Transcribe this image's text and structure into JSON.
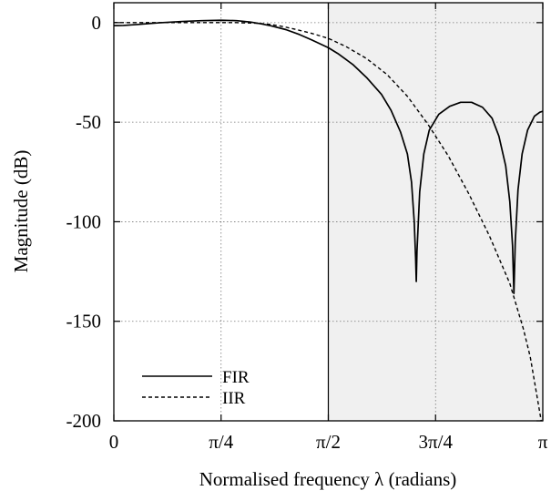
{
  "chart_data": {
    "type": "line",
    "title": "",
    "xlabel": "Normalised frequency λ (radians)",
    "ylabel": "Magnitude (dB)",
    "xlim": [
      0,
      3.14159265
    ],
    "ylim": [
      -200,
      10
    ],
    "grid": true,
    "legend_position": "bottom-left",
    "x_ticks": [
      {
        "value": 0,
        "label": "0"
      },
      {
        "value": 0.78539816,
        "label": "π/4"
      },
      {
        "value": 1.57079633,
        "label": "π/2"
      },
      {
        "value": 2.35619449,
        "label": "3π/4"
      },
      {
        "value": 3.14159265,
        "label": "π"
      }
    ],
    "y_ticks": [
      {
        "value": 0,
        "label": "0"
      },
      {
        "value": -50,
        "label": "-50"
      },
      {
        "value": -100,
        "label": "-100"
      },
      {
        "value": -150,
        "label": "-150"
      },
      {
        "value": -200,
        "label": "-200"
      }
    ],
    "stopband_shading": {
      "from": 1.57079633,
      "to": 3.14159265,
      "color": "#f0f0f0"
    },
    "divider_x": 1.57079633,
    "series": [
      {
        "name": "FIR",
        "style": "solid",
        "color": "#000000",
        "points": [
          [
            0.0,
            -1.5
          ],
          [
            0.07,
            -1.4
          ],
          [
            0.18,
            -0.9
          ],
          [
            0.33,
            -0.1
          ],
          [
            0.5,
            0.6
          ],
          [
            0.64,
            1.0
          ],
          [
            0.785,
            1.2
          ],
          [
            0.9,
            1.0
          ],
          [
            1.0,
            0.3
          ],
          [
            1.08,
            -0.6
          ],
          [
            1.15,
            -1.6
          ],
          [
            1.26,
            -3.5
          ],
          [
            1.36,
            -6.0
          ],
          [
            1.45,
            -8.7
          ],
          [
            1.571,
            -12.6
          ],
          [
            1.64,
            -15.5
          ],
          [
            1.75,
            -21.0
          ],
          [
            1.85,
            -27.5
          ],
          [
            1.96,
            -36.0
          ],
          [
            2.03,
            -44.0
          ],
          [
            2.1,
            -55.0
          ],
          [
            2.15,
            -66.0
          ],
          [
            2.18,
            -80.0
          ],
          [
            2.2,
            -100.0
          ],
          [
            2.21,
            -118.0
          ],
          [
            2.215,
            -130.0
          ],
          [
            2.22,
            -115.0
          ],
          [
            2.24,
            -85.0
          ],
          [
            2.27,
            -66.0
          ],
          [
            2.31,
            -54.0
          ],
          [
            2.38,
            -46.0
          ],
          [
            2.46,
            -42.0
          ],
          [
            2.54,
            -40.0
          ],
          [
            2.62,
            -40.0
          ],
          [
            2.7,
            -42.5
          ],
          [
            2.77,
            -48.0
          ],
          [
            2.82,
            -57.0
          ],
          [
            2.87,
            -72.0
          ],
          [
            2.9,
            -90.0
          ],
          [
            2.92,
            -112.0
          ],
          [
            2.93,
            -136.0
          ],
          [
            2.94,
            -110.0
          ],
          [
            2.96,
            -84.0
          ],
          [
            2.99,
            -66.0
          ],
          [
            3.03,
            -54.0
          ],
          [
            3.08,
            -47.0
          ],
          [
            3.12,
            -45.0
          ],
          [
            3.1416,
            -44.5
          ]
        ]
      },
      {
        "name": "IIR",
        "style": "dashed",
        "color": "#000000",
        "points": [
          [
            0.0,
            0.0
          ],
          [
            0.3,
            0.0
          ],
          [
            0.6,
            0.0
          ],
          [
            0.9,
            0.0
          ],
          [
            1.05,
            -0.3
          ],
          [
            1.15,
            -0.9
          ],
          [
            1.25,
            -2.1
          ],
          [
            1.35,
            -3.7
          ],
          [
            1.45,
            -5.4
          ],
          [
            1.571,
            -7.9
          ],
          [
            1.7,
            -12.0
          ],
          [
            1.85,
            -18.0
          ],
          [
            2.0,
            -26.0
          ],
          [
            2.15,
            -37.0
          ],
          [
            2.3,
            -51.0
          ],
          [
            2.45,
            -67.0
          ],
          [
            2.6,
            -86.0
          ],
          [
            2.75,
            -107.0
          ],
          [
            2.9,
            -131.0
          ],
          [
            3.0,
            -154.0
          ],
          [
            3.05,
            -168.0
          ],
          [
            3.1,
            -188.0
          ],
          [
            3.13,
            -200.0
          ]
        ]
      }
    ]
  }
}
